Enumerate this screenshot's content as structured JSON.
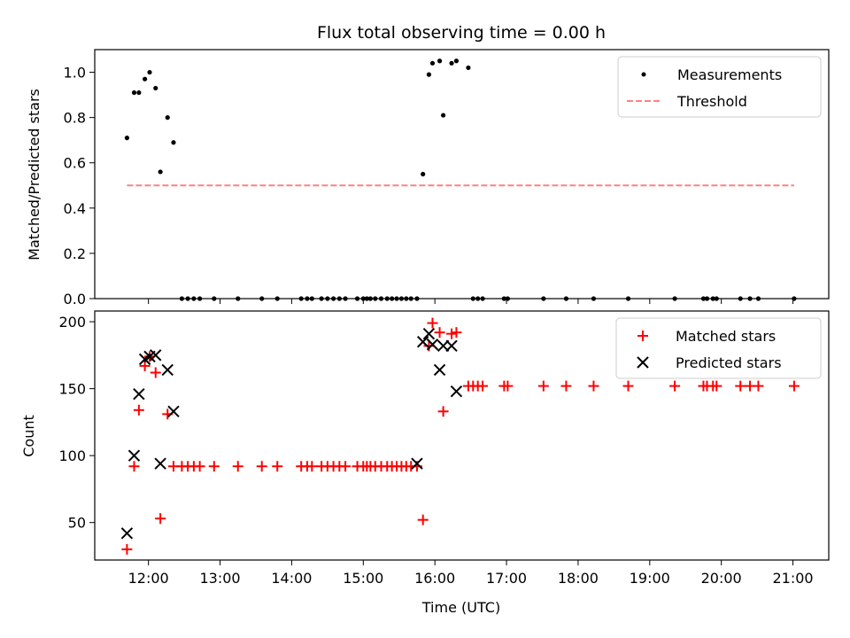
{
  "chart_data": [
    {
      "type": "scatter",
      "title": "Flux total observing time = 0.00 h",
      "xlabel": "",
      "ylabel": "Matched/Predicted stars",
      "xlim": [
        "11:15",
        "21:30"
      ],
      "ylim": [
        0,
        1.1
      ],
      "yticks": [
        "0.0",
        "0.2",
        "0.4",
        "0.6",
        "0.8",
        "1.0"
      ],
      "legend_position": "top-right",
      "series": [
        {
          "name": "Measurements",
          "marker": "dot",
          "color": "#000000",
          "x": [
            "11:42",
            "11:48",
            "11:52",
            "11:57",
            "12:01",
            "12:06",
            "12:10",
            "12:16",
            "12:21",
            "12:28",
            "12:33",
            "12:38",
            "12:43",
            "12:55",
            "13:15",
            "13:35",
            "13:48",
            "14:08",
            "14:13",
            "14:17",
            "14:25",
            "14:30",
            "14:35",
            "14:40",
            "14:45",
            "14:55",
            "15:00",
            "15:03",
            "15:06",
            "15:10",
            "15:15",
            "15:20",
            "15:24",
            "15:28",
            "15:32",
            "15:36",
            "15:40",
            "15:45",
            "15:50",
            "15:55",
            "15:58",
            "16:04",
            "16:07",
            "16:14",
            "16:18",
            "16:28",
            "16:32",
            "16:36",
            "16:40",
            "16:58",
            "17:01",
            "17:31",
            "17:50",
            "18:13",
            "18:42",
            "19:21",
            "19:45",
            "19:48",
            "19:53",
            "19:56",
            "20:16",
            "20:24",
            "20:31",
            "21:01"
          ],
          "y": [
            0.71,
            0.91,
            0.91,
            0.97,
            1.0,
            0.93,
            0.56,
            0.8,
            0.69,
            0,
            0,
            0,
            0,
            0,
            0,
            0,
            0,
            0,
            0,
            0,
            0,
            0,
            0,
            0,
            0,
            0,
            0,
            0,
            0,
            0,
            0,
            0,
            0,
            0,
            0,
            0,
            0,
            0,
            0.55,
            0.99,
            1.04,
            1.05,
            0.81,
            1.04,
            1.05,
            1.02,
            0,
            0,
            0,
            0,
            0,
            0,
            0,
            0,
            0,
            0,
            0,
            0,
            0,
            0,
            0,
            0,
            0,
            0
          ]
        },
        {
          "name": "Threshold",
          "marker": "dashed-line",
          "color": "#ff8080",
          "x": [
            "11:42",
            "21:01"
          ],
          "y": [
            0.5,
            0.5
          ]
        }
      ]
    },
    {
      "type": "scatter",
      "title": "",
      "xlabel": "Time (UTC)",
      "ylabel": "Count",
      "xlim": [
        "11:15",
        "21:30"
      ],
      "ylim": [
        22,
        208
      ],
      "yticks": [
        "50",
        "100",
        "150",
        "200"
      ],
      "xticks": [
        "12:00",
        "13:00",
        "14:00",
        "15:00",
        "16:00",
        "17:00",
        "18:00",
        "19:00",
        "20:00",
        "21:00"
      ],
      "legend_position": "top-right",
      "series": [
        {
          "name": "Matched stars",
          "marker": "plus",
          "color": "#ff0000",
          "x": [
            "11:42",
            "11:48",
            "11:52",
            "11:57",
            "12:01",
            "12:06",
            "12:10",
            "12:16",
            "12:21",
            "12:28",
            "12:33",
            "12:38",
            "12:43",
            "12:55",
            "13:15",
            "13:35",
            "13:48",
            "14:08",
            "14:13",
            "14:17",
            "14:25",
            "14:30",
            "14:35",
            "14:40",
            "14:45",
            "14:55",
            "15:00",
            "15:03",
            "15:06",
            "15:10",
            "15:15",
            "15:20",
            "15:24",
            "15:28",
            "15:32",
            "15:36",
            "15:40",
            "15:45",
            "15:50",
            "15:55",
            "15:58",
            "16:04",
            "16:07",
            "16:14",
            "16:18",
            "16:28",
            "16:32",
            "16:36",
            "16:40",
            "16:58",
            "17:01",
            "17:31",
            "17:50",
            "18:13",
            "18:42",
            "19:21",
            "19:45",
            "19:48",
            "19:53",
            "19:56",
            "20:16",
            "20:24",
            "20:31",
            "21:01"
          ],
          "y": [
            30,
            92,
            134,
            167,
            174,
            162,
            53,
            131,
            92,
            92,
            92,
            92,
            92,
            92,
            92,
            92,
            92,
            92,
            92,
            92,
            92,
            92,
            92,
            92,
            92,
            92,
            92,
            92,
            92,
            92,
            92,
            92,
            92,
            92,
            92,
            92,
            92,
            92,
            52,
            182,
            199,
            192,
            133,
            191,
            192,
            152,
            152,
            152,
            152,
            152,
            152,
            152,
            152,
            152,
            152,
            152,
            152,
            152,
            152,
            152,
            152,
            152,
            152,
            152
          ]
        },
        {
          "name": "Predicted stars",
          "marker": "x",
          "color": "#000000",
          "x": [
            "11:42",
            "11:48",
            "11:52",
            "11:57",
            "12:01",
            "12:06",
            "12:10",
            "12:16",
            "12:21",
            "15:45",
            "15:50",
            "15:55",
            "15:58",
            "16:04",
            "16:07",
            "16:14",
            "16:18"
          ],
          "y": [
            42,
            100,
            146,
            172,
            174,
            175,
            94,
            164,
            133,
            94,
            185,
            191,
            183,
            164,
            182,
            182,
            148
          ]
        }
      ]
    }
  ]
}
